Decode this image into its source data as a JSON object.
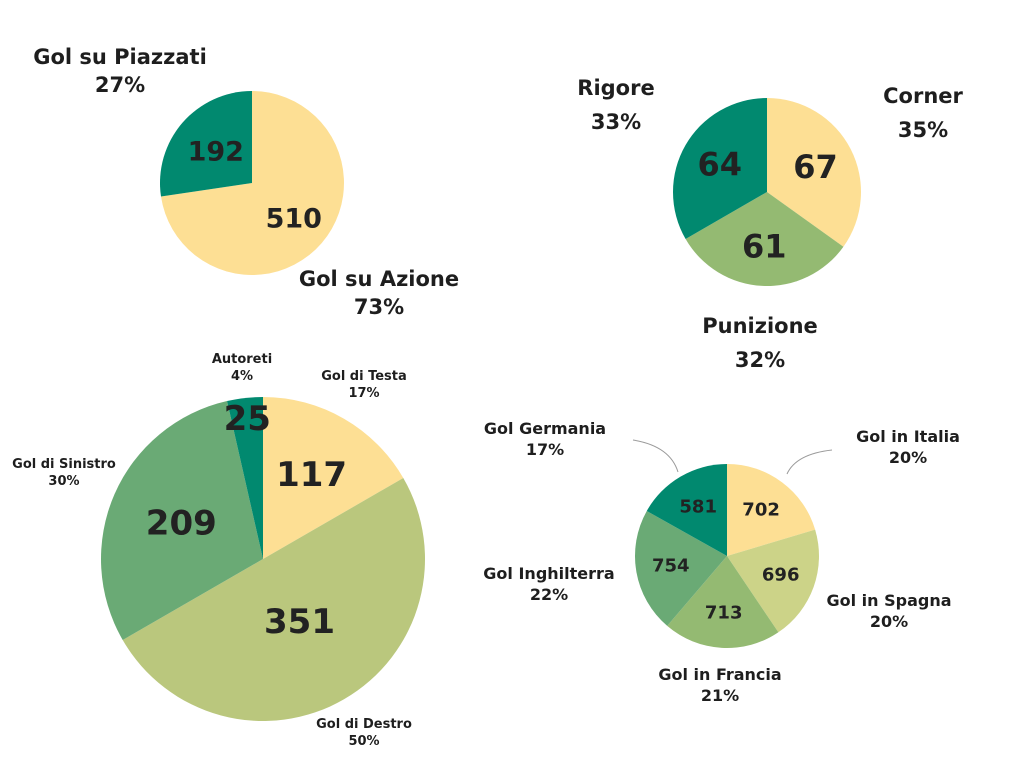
{
  "colors": {
    "pale_yellow": "#fddf94",
    "teal": "#01896f",
    "olive_green": "#bac77d",
    "mid_green": "#6aaa75",
    "sage_green": "#94ba72",
    "khaki": "#ccd388",
    "label_text": "#222222"
  },
  "chart_data": [
    {
      "type": "pie",
      "slices": [
        {
          "label": "Gol su Azione",
          "value": 510,
          "percent": "73%",
          "color": "#fddf94"
        },
        {
          "label": "Gol su Piazzati",
          "value": 192,
          "percent": "27%",
          "color": "#01896f"
        }
      ]
    },
    {
      "type": "pie",
      "slices": [
        {
          "label": "Corner",
          "value": 67,
          "percent": "35%",
          "color": "#fddf94"
        },
        {
          "label": "Punizione",
          "value": 61,
          "percent": "32%",
          "color": "#94ba72"
        },
        {
          "label": "Rigore",
          "value": 64,
          "percent": "33%",
          "color": "#01896f"
        }
      ]
    },
    {
      "type": "pie",
      "slices": [
        {
          "label": "Gol di Testa",
          "value": 117,
          "percent": "17%",
          "color": "#fddf94"
        },
        {
          "label": "Gol di Destro",
          "value": 351,
          "percent": "50%",
          "color": "#bac77d"
        },
        {
          "label": "Gol di Sinistro",
          "value": 209,
          "percent": "30%",
          "color": "#6aaa75"
        },
        {
          "label": "Autoreti",
          "value": 25,
          "percent": "4%",
          "color": "#01896f"
        }
      ]
    },
    {
      "type": "pie",
      "slices": [
        {
          "label": "Gol in Italia",
          "value": 702,
          "percent": "20%",
          "color": "#fddf94"
        },
        {
          "label": "Gol in Spagna",
          "value": 696,
          "percent": "20%",
          "color": "#ccd388"
        },
        {
          "label": "Gol in Francia",
          "value": 713,
          "percent": "21%",
          "color": "#94ba72"
        },
        {
          "label": "Gol Inghilterra",
          "value": 754,
          "percent": "22%",
          "color": "#6aaa75"
        },
        {
          "label": "Gol Germania",
          "value": 581,
          "percent": "17%",
          "color": "#01896f"
        }
      ]
    }
  ]
}
